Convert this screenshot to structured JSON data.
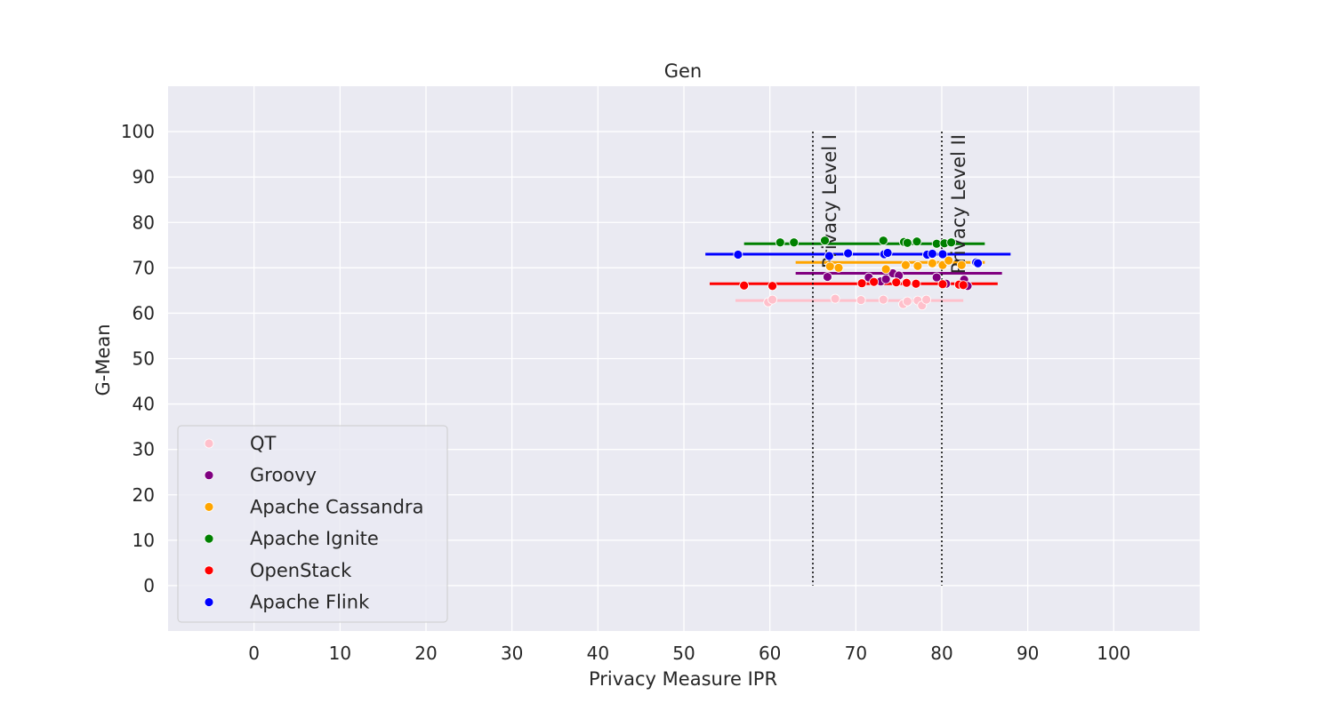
{
  "chart_data": {
    "type": "scatter",
    "title": "Gen",
    "xlabel": "Privacy Measure IPR",
    "ylabel": "G-Mean",
    "xlim": [
      -10,
      110
    ],
    "ylim": [
      -10,
      110
    ],
    "xticks": [
      0,
      10,
      20,
      30,
      40,
      50,
      60,
      70,
      80,
      90,
      100
    ],
    "yticks": [
      0,
      10,
      20,
      30,
      40,
      50,
      60,
      70,
      80,
      90,
      100
    ],
    "grid": true,
    "legend_position": "lower-left",
    "vlines": [
      {
        "x": 65,
        "y_from": 0,
        "y_to": 100,
        "label": "Privacy Level I"
      },
      {
        "x": 80,
        "y_from": 0,
        "y_to": 100,
        "label": "Privacy Level II"
      }
    ],
    "series": [
      {
        "name": "QT",
        "color": "#ffc0cb",
        "mean_line": {
          "x_from": 56,
          "x_to": 82.5,
          "y": 62.8
        },
        "points": [
          [
            59.8,
            62.4
          ],
          [
            60.3,
            63.0
          ],
          [
            67.6,
            63.2
          ],
          [
            70.6,
            62.9
          ],
          [
            73.2,
            63.0
          ],
          [
            75.5,
            62.0
          ],
          [
            76.0,
            62.6
          ],
          [
            77.2,
            62.8
          ],
          [
            77.7,
            61.7
          ],
          [
            78.2,
            63.0
          ]
        ]
      },
      {
        "name": "Groovy",
        "color": "#800080",
        "mean_line": {
          "x_from": 63,
          "x_to": 87,
          "y": 68.8
        },
        "points": [
          [
            66.7,
            68.0
          ],
          [
            71.5,
            67.9
          ],
          [
            72.9,
            67.0
          ],
          [
            73.5,
            67.5
          ],
          [
            74.3,
            68.8
          ],
          [
            75.0,
            68.3
          ],
          [
            79.4,
            67.9
          ],
          [
            80.5,
            66.5
          ],
          [
            82.6,
            67.4
          ],
          [
            83.0,
            66.0
          ]
        ]
      },
      {
        "name": "Apache Cassandra",
        "color": "#ffa500",
        "mean_line": {
          "x_from": 63,
          "x_to": 85,
          "y": 71.2
        },
        "points": [
          [
            67.0,
            70.3
          ],
          [
            68.0,
            70.0
          ],
          [
            73.5,
            69.7
          ],
          [
            75.8,
            70.6
          ],
          [
            77.2,
            70.4
          ],
          [
            78.9,
            71.0
          ],
          [
            80.1,
            70.6
          ],
          [
            80.8,
            71.6
          ],
          [
            82.3,
            70.6
          ],
          [
            83.9,
            71.2
          ]
        ]
      },
      {
        "name": "Apache Ignite",
        "color": "#008000",
        "mean_line": {
          "x_from": 57,
          "x_to": 85,
          "y": 75.3
        },
        "points": [
          [
            61.2,
            75.6
          ],
          [
            62.8,
            75.6
          ],
          [
            66.4,
            76.0
          ],
          [
            73.2,
            76.0
          ],
          [
            75.6,
            75.7
          ],
          [
            76.0,
            75.5
          ],
          [
            77.1,
            75.8
          ],
          [
            79.4,
            75.3
          ],
          [
            80.3,
            75.4
          ],
          [
            81.1,
            75.6
          ]
        ]
      },
      {
        "name": "OpenStack",
        "color": "#ff0000",
        "mean_line": {
          "x_from": 53,
          "x_to": 86.5,
          "y": 66.5
        },
        "points": [
          [
            57.0,
            66.1
          ],
          [
            60.3,
            66.0
          ],
          [
            70.7,
            66.6
          ],
          [
            72.1,
            66.9
          ],
          [
            74.7,
            66.8
          ],
          [
            75.9,
            66.7
          ],
          [
            77.0,
            66.5
          ],
          [
            80.1,
            66.4
          ],
          [
            82.0,
            66.3
          ],
          [
            82.5,
            66.2
          ]
        ]
      },
      {
        "name": "Apache Flink",
        "color": "#0000ff",
        "mean_line": {
          "x_from": 52.5,
          "x_to": 88,
          "y": 73.0
        },
        "points": [
          [
            56.3,
            72.9
          ],
          [
            66.9,
            72.6
          ],
          [
            69.1,
            73.2
          ],
          [
            73.3,
            73.0
          ],
          [
            73.7,
            73.3
          ],
          [
            78.3,
            72.9
          ],
          [
            78.9,
            73.1
          ],
          [
            80.1,
            73.0
          ],
          [
            84.0,
            71.2
          ],
          [
            84.2,
            71.0
          ]
        ]
      }
    ]
  }
}
